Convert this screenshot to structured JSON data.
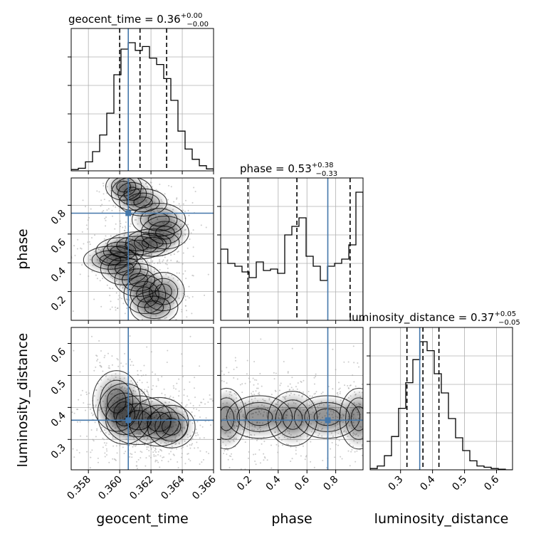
{
  "chart_data": {
    "type": "corner",
    "parameters": [
      "geocent_time",
      "phase",
      "luminosity_distance"
    ],
    "titles": [
      {
        "param": "geocent_time",
        "prefix": "geocent_time = ",
        "median": "0.36",
        "plus": "+0.00",
        "minus": "−0.00"
      },
      {
        "param": "phase",
        "prefix": "phase = ",
        "median": "0.53",
        "plus": "+0.38",
        "minus": "−0.33"
      },
      {
        "param": "luminosity_distance",
        "prefix": "luminosity_distance = ",
        "median": "0.37",
        "plus": "+0.05",
        "minus": "−0.05"
      }
    ],
    "axis_labels": {
      "x": [
        "geocent_time",
        "phase",
        "luminosity_distance"
      ],
      "y": [
        "phase",
        "luminosity_distance"
      ]
    },
    "ranges": {
      "geocent_time": [
        0.3569,
        0.366
      ],
      "phase": [
        0.0,
        0.99
      ],
      "luminosity_distance": [
        0.205,
        0.65
      ]
    },
    "ticks": {
      "geocent_time": [
        "0.358",
        "0.360",
        "0.362",
        "0.364",
        "0.366"
      ],
      "phase": [
        "0.2",
        "0.4",
        "0.6",
        "0.8"
      ],
      "luminosity_distance": [
        "0.3",
        "0.4",
        "0.5",
        "0.6"
      ]
    },
    "truths": {
      "geocent_time": 0.36055,
      "phase": 0.745,
      "luminosity_distance": 0.36
    },
    "quantiles": {
      "geocent_time": [
        0.36,
        0.3613,
        0.363
      ],
      "phase": [
        0.19,
        0.53,
        0.9
      ],
      "luminosity_distance": [
        0.32,
        0.37,
        0.42
      ]
    },
    "histograms": {
      "geocent_time": [
        0.01,
        0.02,
        0.07,
        0.15,
        0.28,
        0.45,
        0.75,
        0.95,
        1.0,
        0.94,
        0.97,
        0.88,
        0.83,
        0.72,
        0.55,
        0.31,
        0.17,
        0.09,
        0.04,
        0.015
      ],
      "phase": [
        0.5,
        0.4,
        0.38,
        0.34,
        0.3,
        0.41,
        0.35,
        0.36,
        0.33,
        0.6,
        0.66,
        0.72,
        0.45,
        0.38,
        0.28,
        0.38,
        0.4,
        0.43,
        0.53,
        0.9
      ],
      "luminosity_distance": [
        0.01,
        0.03,
        0.11,
        0.26,
        0.48,
        0.68,
        0.86,
        1.0,
        0.93,
        0.75,
        0.6,
        0.4,
        0.25,
        0.15,
        0.07,
        0.03,
        0.02,
        0.01,
        0.005,
        0.0
      ]
    },
    "colors": {
      "truth": "#4477aa",
      "line": "#000000",
      "grid": "#b0b0b0"
    }
  }
}
